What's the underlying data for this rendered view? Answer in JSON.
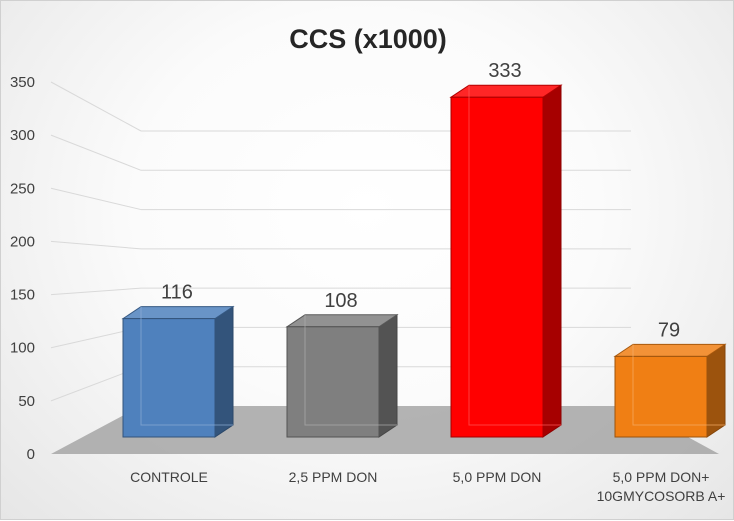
{
  "chart_data": {
    "type": "bar",
    "title": "CCS (x1000)",
    "categories": [
      "CONTROLE",
      "2,5 PPM DON",
      "5,0 PPM DON",
      "5,0 PPM DON+ 10GMYCOSORB A+"
    ],
    "category_lines": [
      [
        "CONTROLE"
      ],
      [
        "2,5 PPM DON"
      ],
      [
        "5,0 PPM DON"
      ],
      [
        "5,0 PPM DON+",
        "10GMYCOSORB A+"
      ]
    ],
    "values": [
      116,
      108,
      333,
      79
    ],
    "data_labels": [
      "116",
      "108",
      "333",
      "79"
    ],
    "ylim": [
      0,
      350
    ],
    "yticks": [
      0,
      50,
      100,
      150,
      200,
      250,
      300,
      350
    ],
    "colors": [
      "#4f81bd",
      "#7f7f7f",
      "#ff0000",
      "#f07f14"
    ],
    "style": "3d-column",
    "grid": true,
    "legend": "none"
  }
}
